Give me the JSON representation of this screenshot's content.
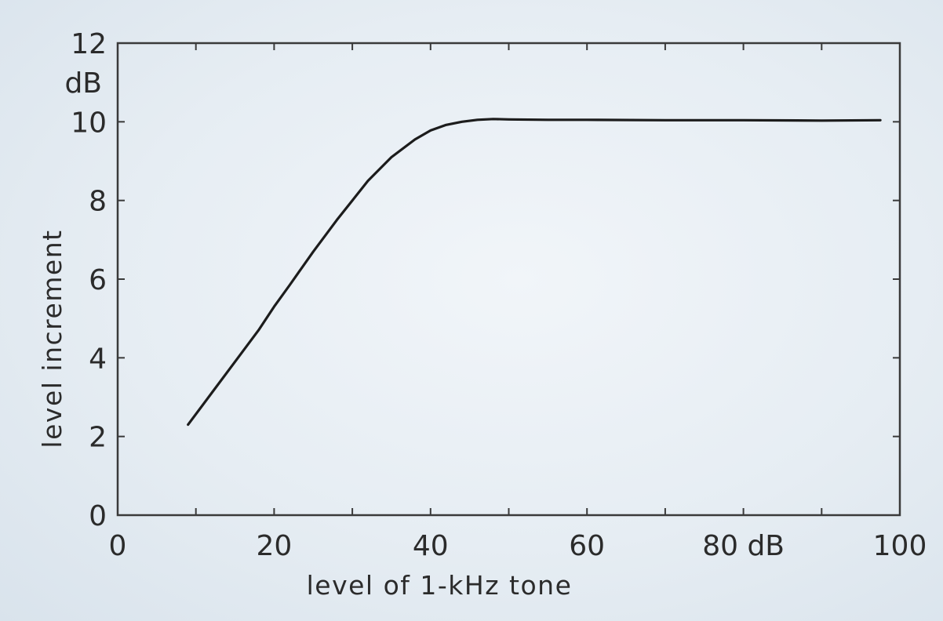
{
  "chart_data": {
    "type": "line",
    "title": "",
    "xlabel": "level of 1-kHz tone",
    "ylabel": "level increment",
    "xlim": [
      0,
      100
    ],
    "ylim": [
      0,
      12
    ],
    "x_ticks": [
      0,
      20,
      40,
      60,
      80,
      100
    ],
    "x_tick_labels": [
      "0",
      "20",
      "40",
      "60",
      "80 dB",
      "100"
    ],
    "y_ticks": [
      0,
      2,
      4,
      6,
      8,
      10,
      12
    ],
    "y_tick_labels": [
      "0",
      "2",
      "4",
      "6",
      "8",
      "10",
      "12"
    ],
    "y_unit": "dB",
    "grid": false,
    "series": [
      {
        "x": [
          9,
          12,
          15,
          18,
          20,
          22,
          25,
          28,
          30,
          32,
          35,
          38,
          40,
          42,
          44,
          46,
          48,
          50,
          55,
          60,
          70,
          80,
          90,
          97.5
        ],
        "y": [
          2.3,
          3.1,
          3.9,
          4.7,
          5.3,
          5.85,
          6.7,
          7.5,
          8.0,
          8.5,
          9.1,
          9.55,
          9.78,
          9.92,
          10.0,
          10.05,
          10.07,
          10.06,
          10.05,
          10.05,
          10.04,
          10.04,
          10.03,
          10.04
        ]
      }
    ],
    "colors": {
      "line": "#1c1c1c",
      "frame": "#3a3a3a",
      "text": "#2b2b2b"
    }
  }
}
